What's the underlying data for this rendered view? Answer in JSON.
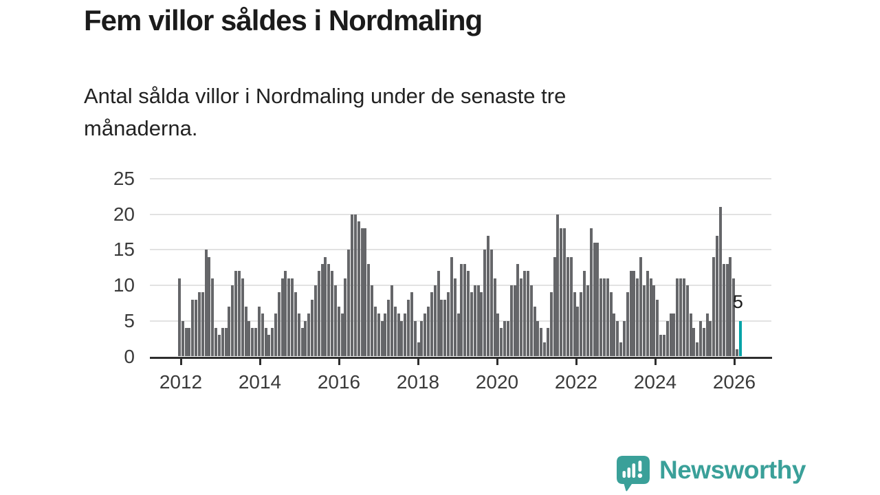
{
  "header": {
    "title": "Fem villor såldes i Nordmaling",
    "subtitle": "Antal sålda villor i Nordmaling under de senaste tre månaderna."
  },
  "chart_data": {
    "type": "bar",
    "title": "Fem villor såldes i Nordmaling",
    "frequency": "monthly",
    "x_start": "2012-01",
    "x_end": "2026-02",
    "values": [
      11,
      5,
      4,
      4,
      8,
      8,
      9,
      9,
      15,
      14,
      11,
      4,
      3,
      4,
      4,
      7,
      10,
      12,
      12,
      11,
      7,
      5,
      4,
      4,
      7,
      6,
      4,
      3,
      4,
      6,
      9,
      11,
      12,
      11,
      11,
      9,
      6,
      4,
      5,
      6,
      8,
      10,
      12,
      13,
      14,
      13,
      12,
      10,
      7,
      6,
      11,
      15,
      20,
      20,
      19,
      18,
      18,
      13,
      10,
      7,
      6,
      5,
      6,
      8,
      10,
      7,
      6,
      5,
      6,
      8,
      9,
      5,
      2,
      5,
      6,
      7,
      9,
      10,
      12,
      8,
      8,
      9,
      14,
      11,
      6,
      13,
      13,
      12,
      9,
      10,
      10,
      9,
      15,
      17,
      15,
      11,
      6,
      4,
      5,
      5,
      10,
      10,
      13,
      11,
      12,
      12,
      10,
      7,
      5,
      4,
      2,
      4,
      9,
      14,
      20,
      18,
      18,
      14,
      14,
      9,
      7,
      9,
      12,
      10,
      18,
      16,
      16,
      11,
      11,
      11,
      9,
      6,
      5,
      2,
      5,
      9,
      12,
      12,
      11,
      14,
      10,
      12,
      11,
      10,
      8,
      3,
      3,
      5,
      6,
      6,
      11,
      11,
      11,
      10,
      6,
      4,
      2,
      5,
      4,
      6,
      5,
      14,
      17,
      21,
      13,
      13,
      14,
      11,
      1,
      5
    ],
    "highlight": {
      "index": 169,
      "value": 5,
      "label": "5",
      "color": "#00a3a7"
    },
    "bar_color": "#656669",
    "ylim": [
      0,
      25
    ],
    "yticks": [
      0,
      5,
      10,
      15,
      20,
      25
    ],
    "xticks": [
      2012,
      2014,
      2016,
      2018,
      2020,
      2022,
      2024,
      2026
    ],
    "grid": "horizontal",
    "xlabel": "",
    "ylabel": ""
  },
  "footer": {
    "brand": "Newsworthy",
    "brand_color": "#3aa099",
    "logo_icon": "speech-bubble-bar-chart-exclamation"
  }
}
